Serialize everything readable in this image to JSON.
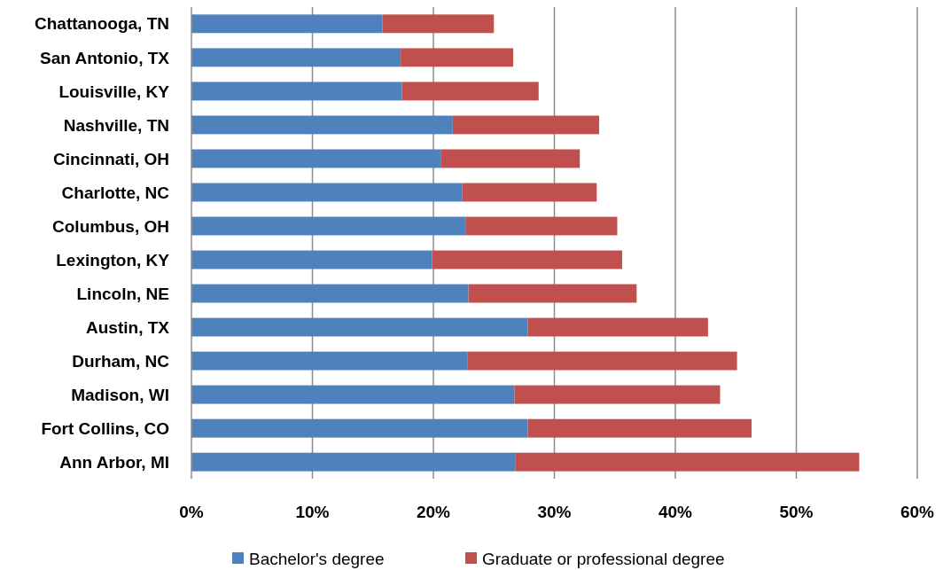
{
  "chart_data": {
    "type": "bar",
    "orientation": "horizontal",
    "stacked": true,
    "categories": [
      "Chattanooga, TN",
      "San Antonio, TX",
      "Louisville, KY",
      "Nashville, TN",
      "Cincinnati, OH",
      "Charlotte, NC",
      "Columbus, OH",
      "Lexington, KY",
      "Lincoln, NE",
      "Austin, TX",
      "Durham, NC",
      "Madison, WI",
      "Fort Collins, CO",
      "Ann Arbor, MI"
    ],
    "series": [
      {
        "name": "Bachelor's degree",
        "color": "#4f81bd",
        "values": [
          15.8,
          17.3,
          17.4,
          21.6,
          20.6,
          22.4,
          22.7,
          19.9,
          22.9,
          27.8,
          22.8,
          26.7,
          27.8,
          26.8
        ]
      },
      {
        "name": "Graduate or professional degree",
        "color": "#c0504d",
        "values": [
          9.2,
          9.3,
          11.3,
          12.1,
          11.5,
          11.1,
          12.5,
          15.7,
          13.9,
          14.9,
          22.3,
          17.0,
          18.5,
          28.4
        ]
      }
    ],
    "xlim": [
      0,
      60
    ],
    "xticks": [
      {
        "value": 0,
        "label": "0%"
      },
      {
        "value": 10,
        "label": "10%"
      },
      {
        "value": 20,
        "label": "20%"
      },
      {
        "value": 30,
        "label": "30%"
      },
      {
        "value": 40,
        "label": "40%"
      },
      {
        "value": 50,
        "label": "50%"
      },
      {
        "value": 60,
        "label": "60%"
      }
    ],
    "grid": "x",
    "legend": "bottom"
  }
}
